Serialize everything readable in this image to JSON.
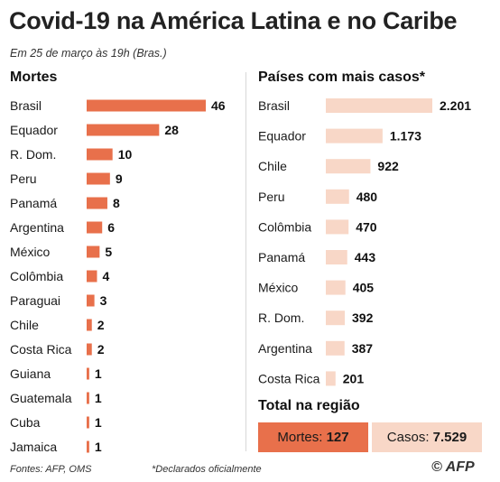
{
  "title": "Covid-19 na América Latina e no Caribe",
  "subtitle": "Em 25 de março às 19h (Bras.)",
  "footer": {
    "source": "Fontes: AFP, OMS",
    "note": "*Declarados oficialmente",
    "logo": "AFP",
    "logo_symbol": "©"
  },
  "colors": {
    "deaths_bar": "#e8704b",
    "cases_bar": "#f8d7c7"
  },
  "totals": {
    "title": "Total na região",
    "deaths_label": "Mortes:",
    "deaths_value": "127",
    "cases_label": "Casos:",
    "cases_value": "7.529"
  },
  "chart_data": [
    {
      "type": "bar",
      "orientation": "horizontal",
      "title": "Mortes",
      "categories": [
        "Brasil",
        "Equador",
        "R. Dom.",
        "Peru",
        "Panamá",
        "Argentina",
        "México",
        "Colômbia",
        "Paraguai",
        "Chile",
        "Costa Rica",
        "Guiana",
        "Guatemala",
        "Cuba",
        "Jamaica"
      ],
      "values": [
        46,
        28,
        10,
        9,
        8,
        6,
        5,
        4,
        3,
        2,
        2,
        1,
        1,
        1,
        1
      ],
      "value_labels": [
        "46",
        "28",
        "10",
        "9",
        "8",
        "6",
        "5",
        "4",
        "3",
        "2",
        "2",
        "1",
        "1",
        "1",
        "1"
      ],
      "xlim": [
        0,
        46
      ],
      "color": "#e8704b"
    },
    {
      "type": "bar",
      "orientation": "horizontal",
      "title": "Países com mais casos*",
      "categories": [
        "Brasil",
        "Equador",
        "Chile",
        "Peru",
        "Colômbia",
        "Panamá",
        "México",
        "R. Dom.",
        "Argentina",
        "Costa Rica"
      ],
      "values": [
        2201,
        1173,
        922,
        480,
        470,
        443,
        405,
        392,
        387,
        201
      ],
      "value_labels": [
        "2.201",
        "1.173",
        "922",
        "480",
        "470",
        "443",
        "405",
        "392",
        "387",
        "201"
      ],
      "xlim": [
        0,
        2201
      ],
      "color": "#f8d7c7"
    }
  ]
}
